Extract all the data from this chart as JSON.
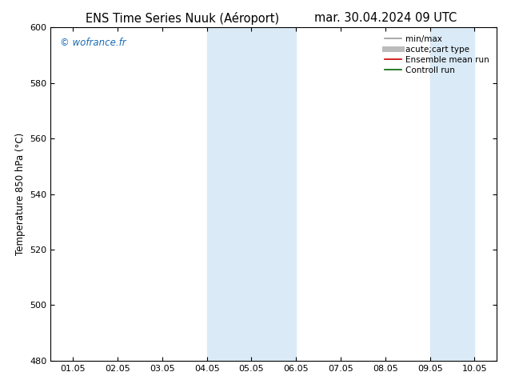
{
  "title_left": "ENS Time Series Nuuk (Aéroport)",
  "title_right": "mar. 30.04.2024 09 UTC",
  "ylabel": "Temperature 850 hPa (°C)",
  "watermark": "© wofrance.fr",
  "ylim": [
    480,
    600
  ],
  "yticks": [
    480,
    500,
    520,
    540,
    560,
    580,
    600
  ],
  "xtick_labels": [
    "01.05",
    "02.05",
    "03.05",
    "04.05",
    "05.05",
    "06.05",
    "07.05",
    "08.05",
    "09.05",
    "10.05"
  ],
  "shade_bands": [
    {
      "xmin": 3,
      "xmax": 5,
      "color": "#daeaf7"
    },
    {
      "xmin": 8,
      "xmax": 9,
      "color": "#daeaf7"
    }
  ],
  "legend_entries": [
    {
      "label": "min/max",
      "color": "#999999",
      "lw": 1.2,
      "style": "-"
    },
    {
      "label": "acute;cart type",
      "color": "#bbbbbb",
      "lw": 5,
      "style": "-"
    },
    {
      "label": "Ensemble mean run",
      "color": "#cc0000",
      "lw": 1.2,
      "style": "-"
    },
    {
      "label": "Controll run",
      "color": "#006600",
      "lw": 1.2,
      "style": "-"
    }
  ],
  "bg_color": "#ffffff",
  "plot_bg_color": "#ffffff",
  "title_fontsize": 10.5,
  "axis_fontsize": 8.5,
  "tick_fontsize": 8,
  "watermark_color": "#1a6bb5",
  "watermark_fontsize": 8.5
}
